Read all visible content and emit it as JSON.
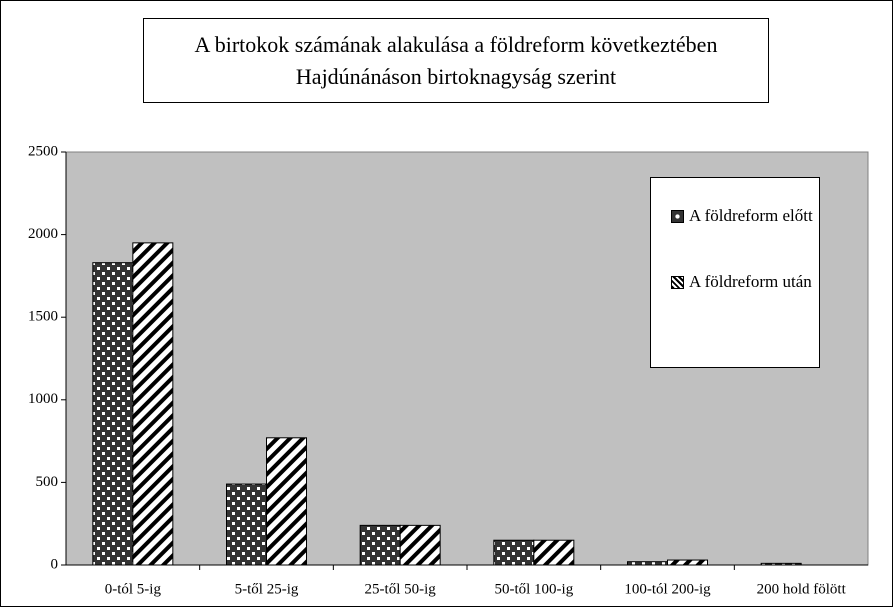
{
  "chart_data": {
    "type": "bar",
    "title": [
      "A birtokok számának alakulása a földreform következtében",
      "Hajdúnánáson birtoknagyság szerint"
    ],
    "categories": [
      "0-tól 5-ig",
      "5-től 25-ig",
      "25-től 50-ig",
      "50-től 100-ig",
      "100-tól 200-ig",
      "200 hold fölött"
    ],
    "series": [
      {
        "name": "A földreform előtt",
        "color": "#333333",
        "values": [
          1830,
          490,
          240,
          150,
          20,
          10
        ]
      },
      {
        "name": "A földreform után",
        "color": "#ffffff",
        "values": [
          1950,
          770,
          240,
          150,
          30,
          0
        ]
      }
    ],
    "ylim": [
      0,
      2500
    ],
    "yticks": [
      0,
      500,
      1000,
      1500,
      2000,
      2500
    ],
    "grid": false,
    "legend": "upper right"
  }
}
